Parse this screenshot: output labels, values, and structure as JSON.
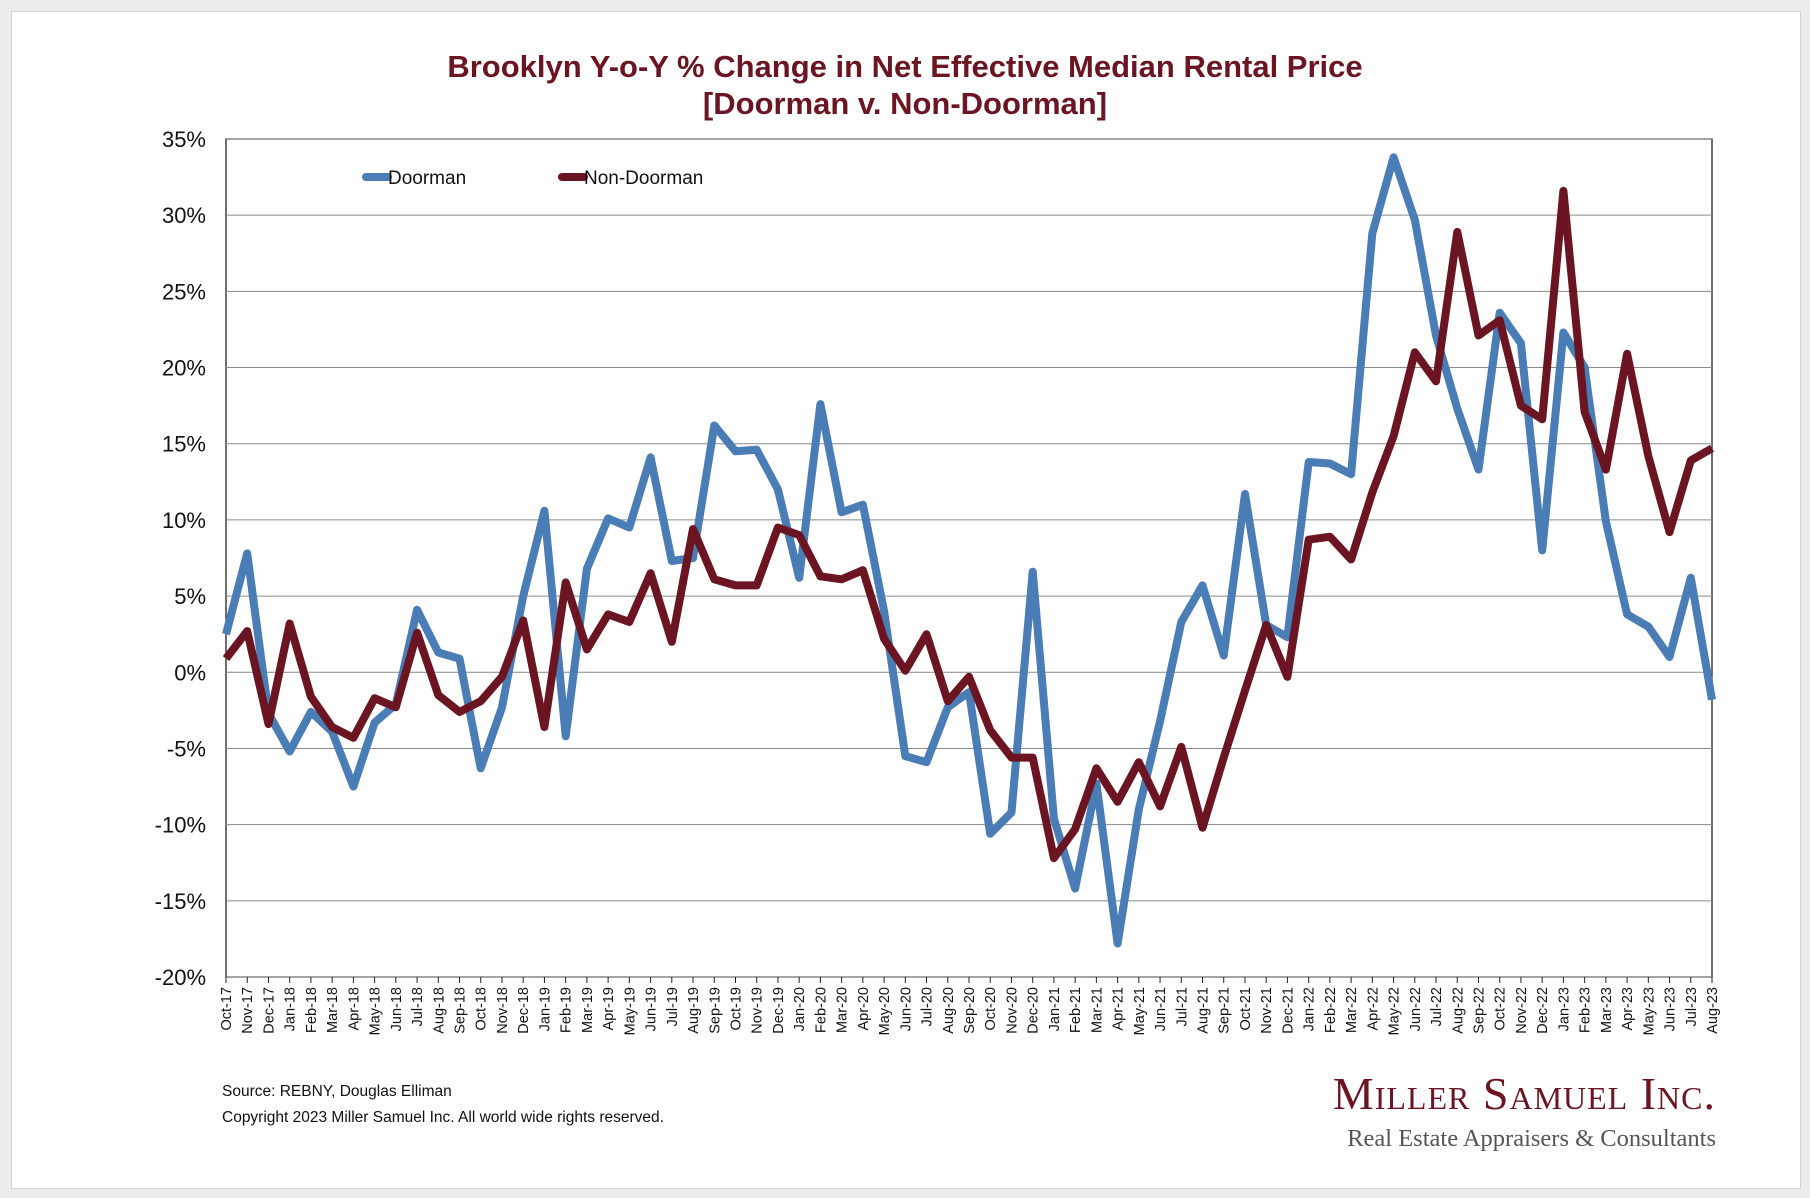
{
  "chart_data": {
    "type": "line",
    "title": "Brooklyn Y-o-Y % Change in Net Effective Median Rental Price",
    "subtitle": "[Doorman v. Non-Doorman]",
    "xlabel": "",
    "ylabel": "",
    "ylim": [
      -20,
      35
    ],
    "yticks": [
      35,
      30,
      25,
      20,
      15,
      10,
      5,
      0,
      -5,
      -10,
      -15,
      -20
    ],
    "ytick_labels": [
      "35%",
      "30%",
      "25%",
      "20%",
      "15%",
      "10%",
      "5%",
      "0%",
      "-5%",
      "-10%",
      "-15%",
      "-20%"
    ],
    "grid": true,
    "legend": "top-left",
    "categories": [
      "Oct-17",
      "Nov-17",
      "Dec-17",
      "Jan-18",
      "Feb-18",
      "Mar-18",
      "Apr-18",
      "May-18",
      "Jun-18",
      "Jul-18",
      "Aug-18",
      "Sep-18",
      "Oct-18",
      "Nov-18",
      "Dec-18",
      "Jan-19",
      "Feb-19",
      "Mar-19",
      "Apr-19",
      "May-19",
      "Jun-19",
      "Jul-19",
      "Aug-19",
      "Sep-19",
      "Oct-19",
      "Nov-19",
      "Dec-19",
      "Jan-20",
      "Feb-20",
      "Mar-20",
      "Apr-20",
      "May-20",
      "Jun-20",
      "Jul-20",
      "Aug-20",
      "Sep-20",
      "Oct-20",
      "Nov-20",
      "Dec-20",
      "Jan-21",
      "Feb-21",
      "Mar-21",
      "Apr-21",
      "May-21",
      "Jun-21",
      "Jul-21",
      "Aug-21",
      "Sep-21",
      "Oct-21",
      "Nov-21",
      "Dec-21",
      "Jan-22",
      "Feb-22",
      "Mar-22",
      "Apr-22",
      "May-22",
      "Jun-22",
      "Jul-22",
      "Aug-22",
      "Sep-22",
      "Oct-22",
      "Nov-22",
      "Dec-22",
      "Jan-23",
      "Feb-23",
      "Mar-23",
      "Apr-23",
      "May-23",
      "Jun-23",
      "Jul-23",
      "Aug-23"
    ],
    "series": [
      {
        "name": "Doorman",
        "color": "#4a7cb5",
        "values": [
          2.5,
          7.8,
          -2.7,
          -5.2,
          -2.6,
          -3.9,
          -7.5,
          -3.3,
          -2.1,
          4.1,
          1.3,
          0.9,
          -6.3,
          -2.3,
          5.0,
          10.6,
          -4.2,
          6.8,
          10.1,
          9.5,
          14.1,
          7.3,
          7.5,
          16.2,
          14.5,
          14.6,
          12.0,
          6.2,
          17.6,
          10.5,
          11.0,
          4.0,
          -5.5,
          -5.9,
          -2.3,
          -1.3,
          -10.6,
          -9.2,
          6.6,
          -9.6,
          -14.2,
          -7.3,
          -17.8,
          -9.0,
          -3.2,
          3.3,
          5.7,
          1.1,
          11.7,
          3.1,
          2.3,
          13.8,
          13.7,
          13.0,
          28.8,
          33.8,
          29.7,
          22.1,
          17.3,
          13.3,
          23.6,
          21.6,
          8.0,
          22.3,
          20.0,
          9.9,
          3.8,
          3.0,
          1.0,
          6.2,
          -1.8
        ]
      },
      {
        "name": "Non-Doorman",
        "color": "#6b1522",
        "values": [
          0.9,
          2.7,
          -3.4,
          3.2,
          -1.6,
          -3.6,
          -4.3,
          -1.7,
          -2.3,
          2.6,
          -1.5,
          -2.6,
          -1.9,
          -0.3,
          3.4,
          -3.6,
          5.9,
          1.5,
          3.8,
          3.3,
          6.5,
          2.0,
          9.4,
          6.1,
          5.7,
          5.7,
          9.5,
          9.0,
          6.3,
          6.1,
          6.7,
          2.2,
          0.1,
          2.5,
          -1.9,
          -0.3,
          -3.8,
          -5.6,
          -5.6,
          -12.2,
          -10.3,
          -6.3,
          -8.5,
          -5.9,
          -8.8,
          -4.9,
          -10.2,
          -5.6,
          -1.2,
          3.1,
          -0.3,
          8.7,
          8.9,
          7.4,
          11.8,
          15.5,
          21.0,
          19.1,
          28.9,
          22.1,
          23.1,
          17.5,
          16.6,
          31.6,
          17.1,
          13.3,
          20.9,
          14.2,
          9.2,
          13.9,
          14.7
        ]
      }
    ]
  },
  "footer": {
    "source": "Source: REBNY, Douglas Elliman",
    "copyright": "Copyright 2023 Miller Samuel Inc.  All world wide rights reserved."
  },
  "logo": {
    "name": "Miller Samuel Inc.",
    "tagline": "Real Estate Appraisers & Consultants"
  }
}
